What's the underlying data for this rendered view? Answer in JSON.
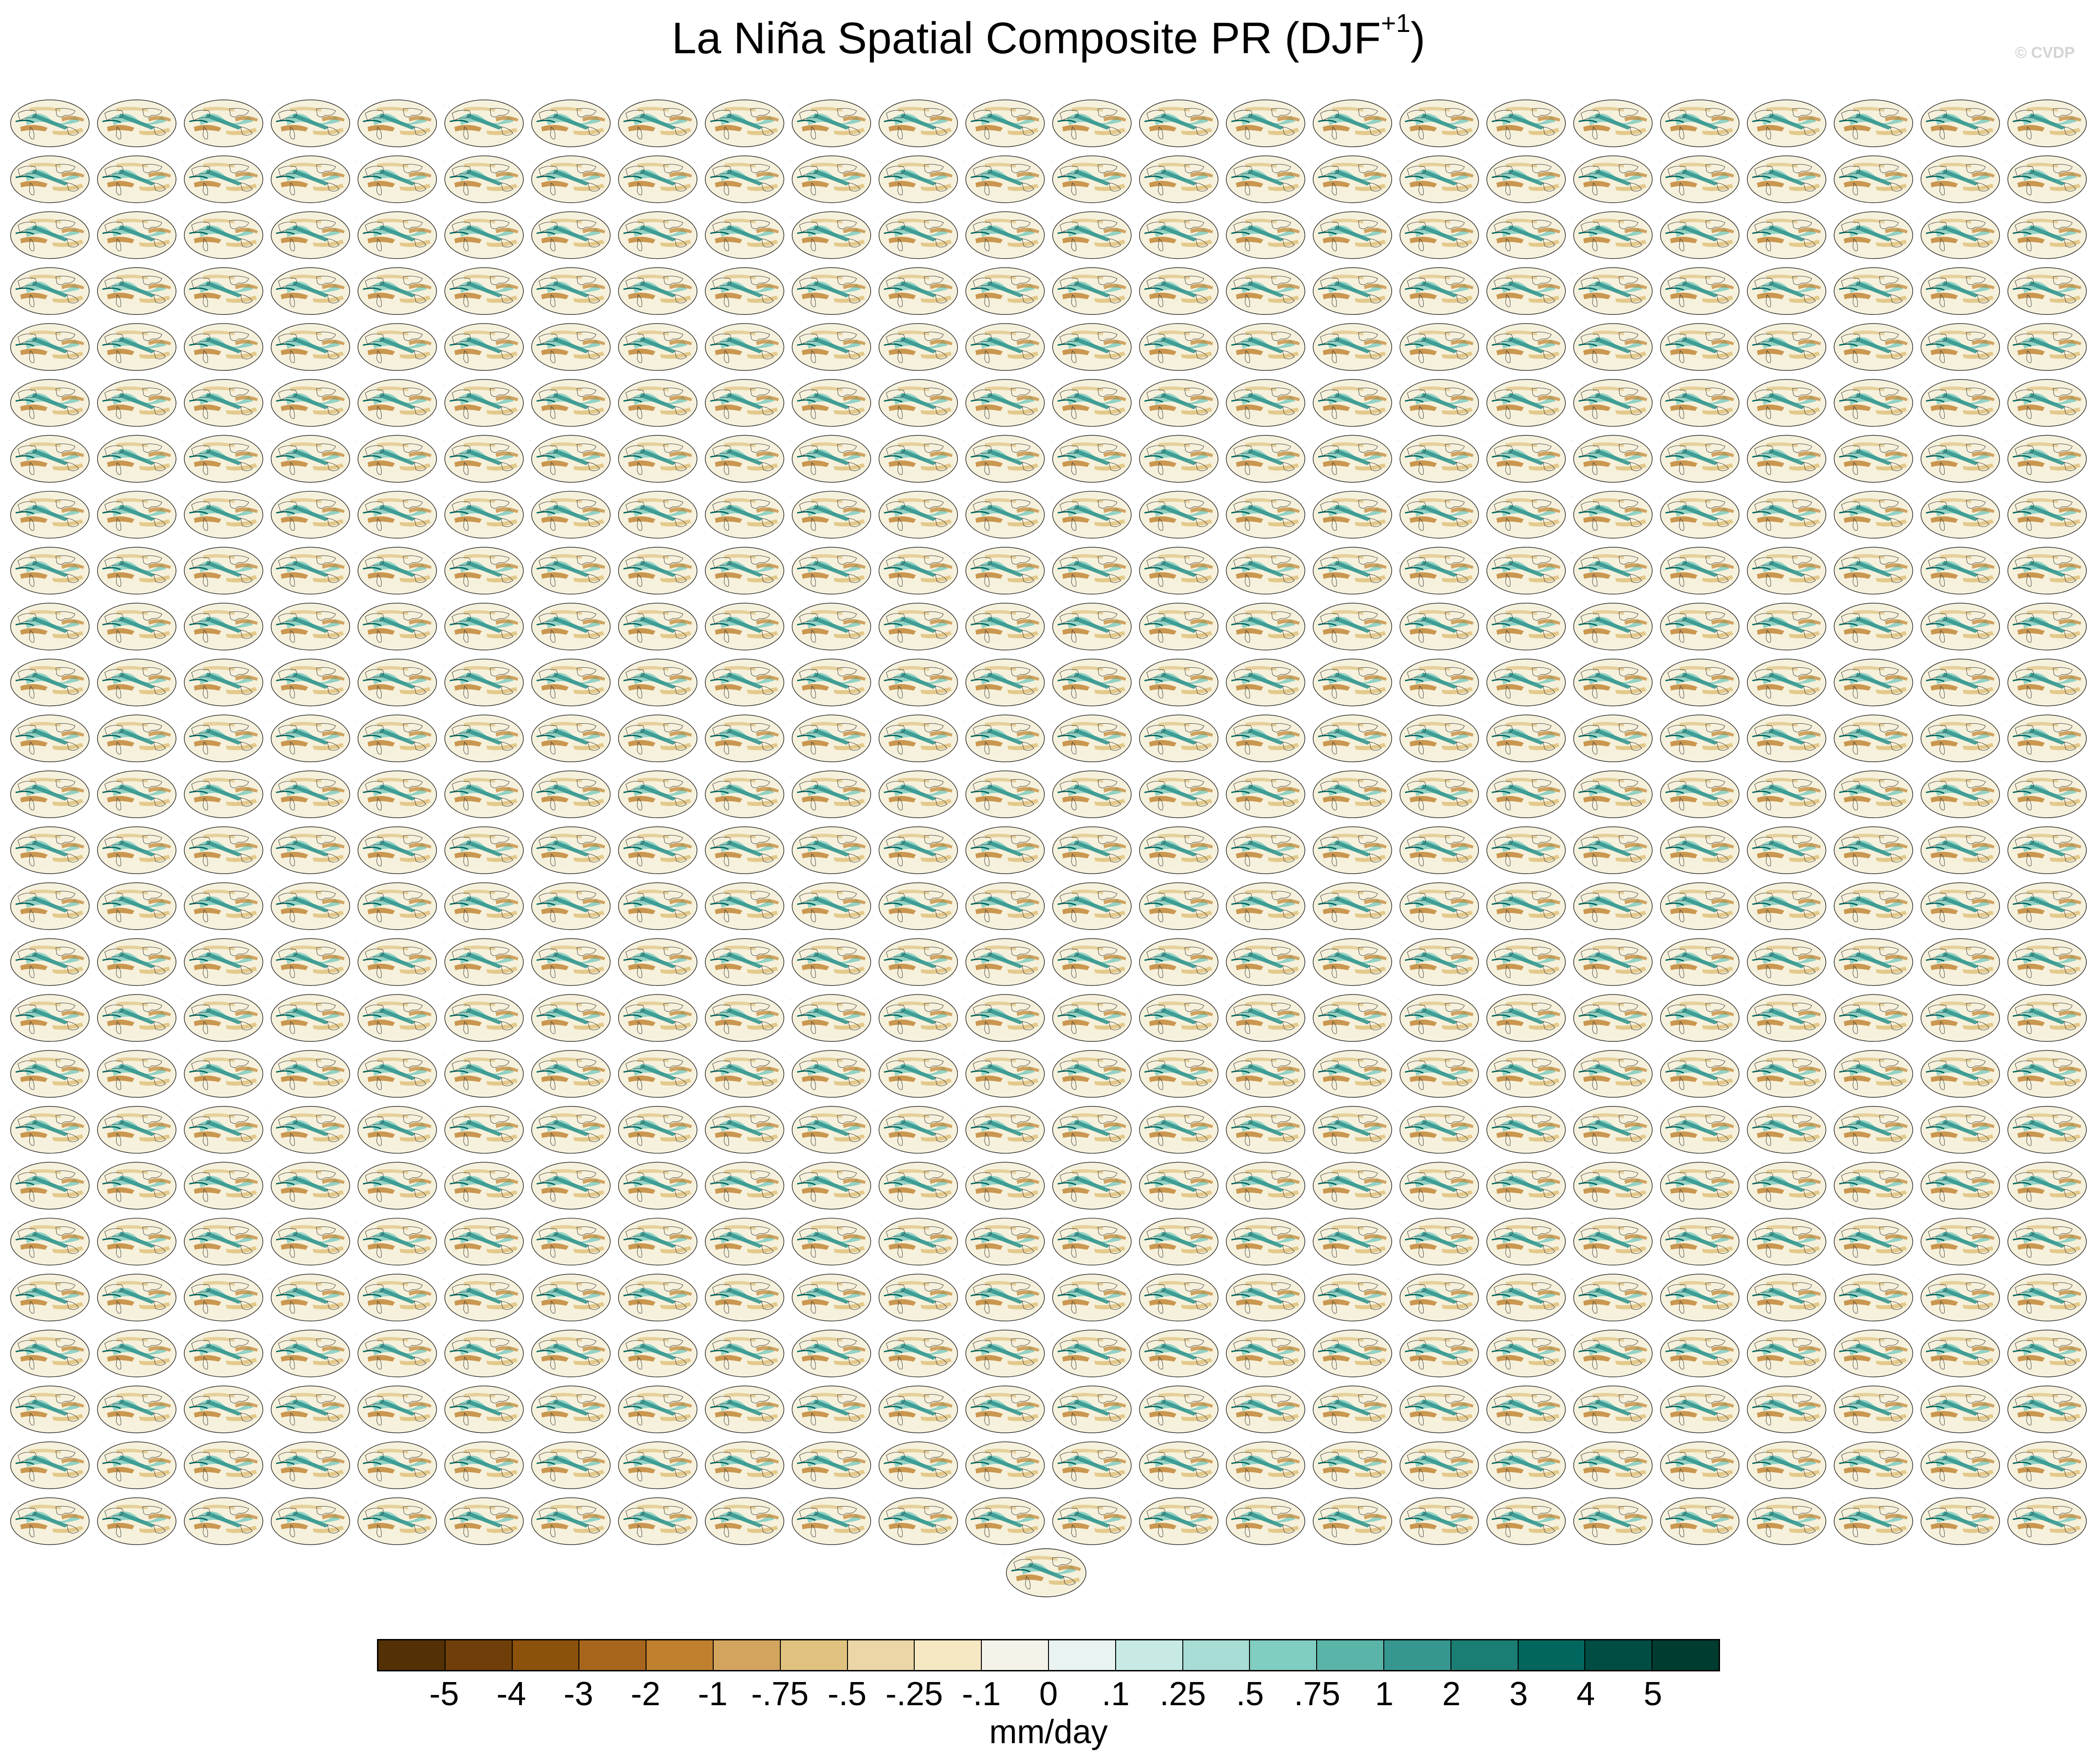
{
  "title": {
    "main": "La Niña Spatial Composite PR (DJF",
    "superscript": "+1",
    "close": ")"
  },
  "watermark": "© CVDP",
  "grid": {
    "rows": 26,
    "cols": 24
  },
  "colorbar": {
    "colors": [
      "#543005",
      "#6f3e09",
      "#8c510a",
      "#a8661c",
      "#bf812d",
      "#d3a45e",
      "#dfc27d",
      "#ecd6a6",
      "#f6e8c3",
      "#f5f2ea",
      "#e9f3f1",
      "#c7eae5",
      "#a7ddd4",
      "#80cdc1",
      "#5ab4a8",
      "#35978f",
      "#1b7e74",
      "#01665e",
      "#014d44",
      "#003c30"
    ],
    "labels": [
      "-5",
      "-4",
      "-3",
      "-2",
      "-1",
      "-.75",
      "-.5",
      "-.25",
      "-.1",
      "0",
      ".1",
      ".25",
      ".5",
      ".75",
      "1",
      "2",
      "3",
      "4",
      "5"
    ],
    "units": "mm/day"
  },
  "map_colors": {
    "wet": "#35978f",
    "wet_light": "#80cdc1",
    "dry": "#bf812d",
    "dry_light": "#dfc27d",
    "background": "#f6f1dc",
    "coast": "#333333"
  }
}
